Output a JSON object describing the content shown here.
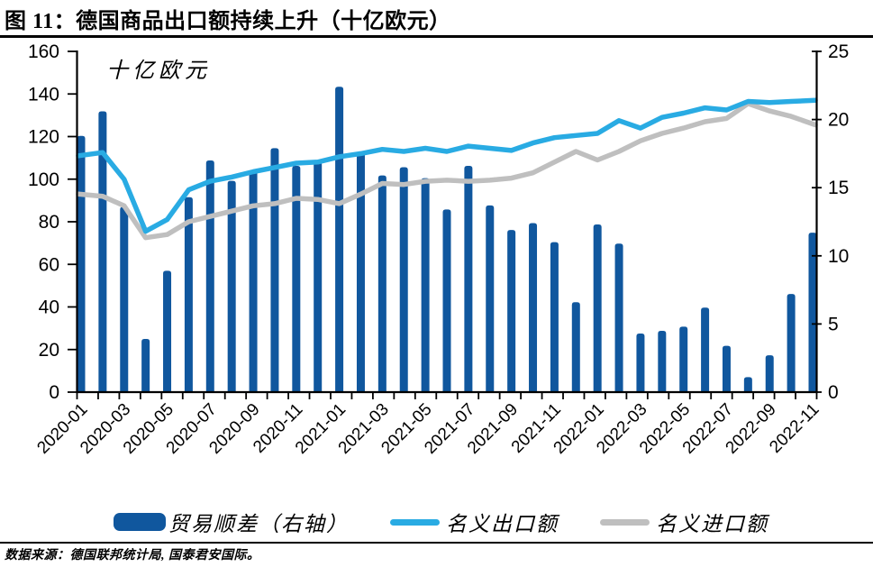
{
  "figure": {
    "title": "图 11：德国商品出口额持续上升（十亿欧元）",
    "unit_label": "十亿欧元",
    "source": "数据来源：德国联邦统计局, 国泰君安国际。"
  },
  "colors": {
    "bar": "#10579E",
    "export_line": "#29ABE3",
    "import_line": "#BFBFBF",
    "axis": "#000000"
  },
  "legend": {
    "items": [
      {
        "label": "贸易顺差（右轴）",
        "type": "bar-swatch"
      },
      {
        "label": "名义出口额",
        "type": "line-swatch-blue"
      },
      {
        "label": "名义进口额",
        "type": "line-swatch-gray"
      }
    ]
  },
  "chart_data": {
    "type": "bar+line combo (bars on right axis, lines on left axis)",
    "title": "图 11：德国商品出口额持续上升（十亿欧元）",
    "unit": "十亿欧元",
    "grid": false,
    "legend_position": "bottom",
    "categories": [
      "2020-01",
      "2020-02",
      "2020-03",
      "2020-04",
      "2020-05",
      "2020-06",
      "2020-07",
      "2020-08",
      "2020-09",
      "2020-10",
      "2020-11",
      "2020-12",
      "2021-01",
      "2021-02",
      "2021-03",
      "2021-04",
      "2021-05",
      "2021-06",
      "2021-07",
      "2021-08",
      "2021-09",
      "2021-10",
      "2021-11",
      "2021-12",
      "2022-01",
      "2022-02",
      "2022-03",
      "2022-04",
      "2022-05",
      "2022-06",
      "2022-07",
      "2022-08",
      "2022-09",
      "2022-10",
      "2022-11"
    ],
    "x_tick_labels": [
      "2020-01",
      "2020-03",
      "2020-05",
      "2020-07",
      "2020-09",
      "2020-11",
      "2021-01",
      "2021-03",
      "2021-05",
      "2021-07",
      "2021-09",
      "2021-11",
      "2022-01",
      "2022-03",
      "2022-05",
      "2022-07",
      "2022-09",
      "2022-11"
    ],
    "left_axis": {
      "min": 0,
      "max": 160,
      "ticks": [
        0,
        20,
        40,
        60,
        80,
        100,
        120,
        140,
        160
      ]
    },
    "right_axis": {
      "min": 0,
      "max": 25,
      "ticks": [
        0,
        5,
        10,
        15,
        20,
        25
      ]
    },
    "series": [
      {
        "name": "贸易顺差（右轴）",
        "type": "bar",
        "axis": "right",
        "values": [
          18.8,
          20.6,
          13.6,
          3.9,
          8.9,
          14.3,
          17.0,
          15.5,
          16.3,
          17.9,
          16.6,
          16.9,
          22.4,
          17.6,
          15.9,
          16.5,
          15.7,
          13.4,
          16.6,
          13.7,
          11.9,
          12.4,
          11.0,
          6.6,
          12.3,
          10.9,
          4.3,
          4.5,
          4.8,
          6.2,
          3.4,
          1.1,
          2.7,
          7.2,
          11.7
        ]
      },
      {
        "name": "名义出口额",
        "type": "line",
        "axis": "left",
        "values": [
          111,
          112.5,
          100,
          75.5,
          81,
          95,
          99,
          101,
          103.5,
          105.5,
          107.5,
          108,
          110.5,
          112,
          114,
          113,
          114.5,
          113,
          115.5,
          114.5,
          113.5,
          117,
          119.5,
          120.5,
          121.5,
          127.5,
          124,
          129,
          131,
          133.5,
          132.5,
          136.5,
          136,
          136.5,
          137
        ]
      },
      {
        "name": "名义进口额",
        "type": "line",
        "axis": "left",
        "values": [
          93,
          92,
          87.5,
          72.5,
          74,
          80,
          82.5,
          85,
          87.5,
          88.5,
          91,
          90.5,
          88.5,
          93,
          98,
          97.5,
          99,
          99.5,
          99,
          99.5,
          100.5,
          103,
          108,
          113,
          109,
          113,
          118,
          121.5,
          124,
          127,
          128.5,
          135.5,
          132,
          129.5,
          125.5
        ]
      }
    ]
  }
}
